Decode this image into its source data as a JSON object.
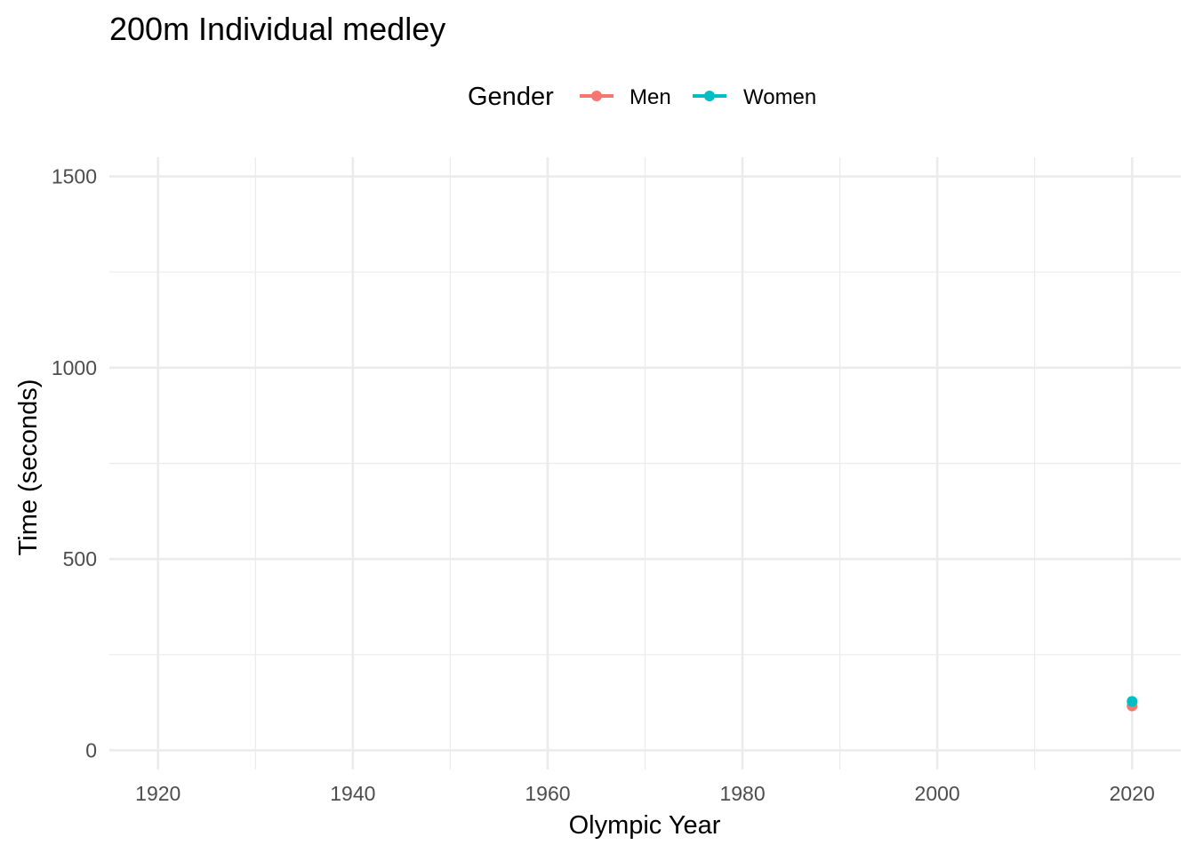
{
  "chart_data": {
    "type": "line",
    "title": "200m Individual medley",
    "xlabel": "Olympic Year",
    "ylabel": "Time (seconds)",
    "xlim": [
      1915,
      2025
    ],
    "ylim": [
      -50,
      1550
    ],
    "x_ticks": [
      1920,
      1940,
      1960,
      1980,
      2000,
      2020
    ],
    "x_minor_ticks": [
      1930,
      1950,
      1970,
      1990,
      2010
    ],
    "y_ticks": [
      0,
      500,
      1000,
      1500
    ],
    "y_minor_ticks": [
      250,
      750,
      1250
    ],
    "grid": true,
    "legend": {
      "title": "Gender",
      "position": "top"
    },
    "series": [
      {
        "name": "Men",
        "color": "#F8766D",
        "points": [
          {
            "x": 2020,
            "y": 116
          }
        ]
      },
      {
        "name": "Women",
        "color": "#00BFC4",
        "points": [
          {
            "x": 2020,
            "y": 128
          }
        ]
      }
    ]
  }
}
